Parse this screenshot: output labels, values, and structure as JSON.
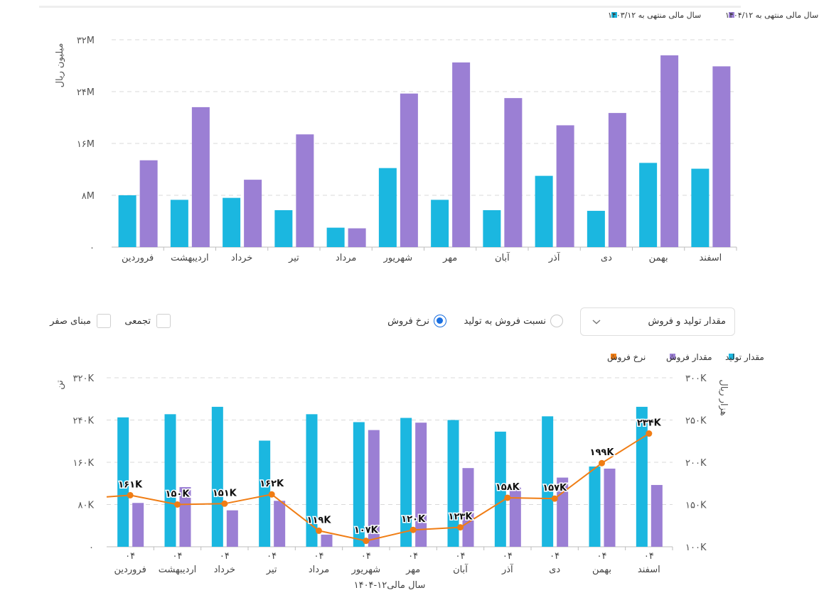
{
  "chart_data": [
    {
      "type": "bar",
      "title": "",
      "ylabel": "میلیون ریال",
      "ylim": [
        0,
        32
      ],
      "y_ticks": [
        "۰",
        "۸M",
        "۱۶M",
        "۲۴M",
        "۳۲M"
      ],
      "categories": [
        "فروردین",
        "اردیبهشت",
        "خرداد",
        "تیر",
        "مرداد",
        "شهریور",
        "مهر",
        "آبان",
        "آذر",
        "دی",
        "بهمن",
        "اسفند"
      ],
      "series": [
        {
          "name": "سال مالی منتهی به ۱۴۰۴/۱۲",
          "color": "#9b7fd4",
          "values": [
            13.4,
            21.6,
            10.4,
            17.4,
            2.9,
            23.7,
            28.5,
            23.0,
            18.8,
            20.7,
            29.6,
            27.9
          ]
        },
        {
          "name": "سال مالی منتهی به ۱۴۰۳/۱۲",
          "color": "#1bb7e0",
          "values": [
            8.0,
            7.3,
            7.6,
            5.7,
            3.0,
            12.2,
            7.3,
            5.7,
            11.0,
            5.6,
            13.0,
            12.1
          ]
        }
      ],
      "legend": "top-right",
      "grid": true
    },
    {
      "type": "bar",
      "title": "",
      "xlabel": "سال مالی۱۲-۱۴۰۴",
      "ylabel": "تن",
      "ylim": [
        0,
        320
      ],
      "y_ticks": [
        "۰",
        "۸۰K",
        "۱۶۰K",
        "۲۴۰K",
        "۳۲۰K"
      ],
      "y2label": "هزار ریال",
      "y2lim": [
        100,
        300
      ],
      "y2_ticks": [
        "۱۰۰K",
        "۱۵۰K",
        "۲۰۰K",
        "۲۵۰K",
        "۳۰۰K"
      ],
      "categories": [
        "فروردین",
        "اردیبهشت",
        "خرداد",
        "تیر",
        "مرداد",
        "شهریور",
        "مهر",
        "آبان",
        "آذر",
        "دی",
        "بهمن",
        "اسفند"
      ],
      "category_year": "۰۴",
      "series": [
        {
          "name": "مقدار تولید",
          "kind": "bar",
          "color": "#1bb7e0",
          "values": [
            245,
            251,
            265,
            201,
            251,
            236,
            244,
            240,
            218,
            247,
            152,
            265
          ]
        },
        {
          "name": "مقدار فروش",
          "kind": "bar",
          "color": "#9b7fd4",
          "values": [
            83,
            113,
            69,
            87,
            23,
            221,
            235,
            149,
            112,
            131,
            148,
            117
          ]
        },
        {
          "name": "نرخ فروش",
          "kind": "line",
          "axis": "right",
          "color": "#f07d14",
          "values": [
            161,
            150,
            151,
            162,
            119,
            107,
            120,
            123,
            158,
            157,
            199,
            234
          ],
          "labels": [
            "۱۶۱K",
            "۱۵۰K",
            "۱۵۱K",
            "۱۶۲K",
            "۱۱۹K",
            "۱۰۷K",
            "۱۲۰K",
            "۱۲۳K",
            "۱۵۸K",
            "۱۵۷K",
            "۱۹۹K",
            "۲۳۴K"
          ],
          "left_edge_value": 159
        }
      ],
      "legend": "top-right",
      "grid": true
    }
  ],
  "controls": {
    "dropdown_value": "مقدار تولید و فروش",
    "dropdown_icon": "chevron-down-icon",
    "radio_ratio_label": "نسبت فروش به تولید",
    "radio_rate_label": "نرخ فروش",
    "selected": "rate",
    "cumulative_label": "تجمعی",
    "zero_base_label": "مبنای صفر",
    "accent_color": "#1a6fe0"
  }
}
